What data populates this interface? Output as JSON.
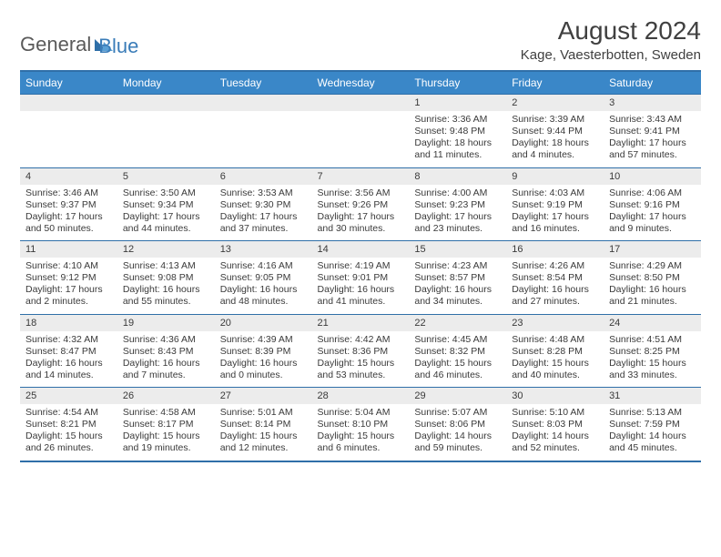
{
  "logo": {
    "general": "General",
    "blue": "Blue"
  },
  "title": "August 2024",
  "location": "Kage, Vaesterbotten, Sweden",
  "colors": {
    "header_bg": "#3a87c8",
    "border": "#2f6fa8",
    "daynum_bg": "#ececec",
    "text": "#3a3a3a",
    "logo_gray": "#5a5a5a",
    "logo_blue": "#3a7cb8"
  },
  "dayHeaders": [
    "Sunday",
    "Monday",
    "Tuesday",
    "Wednesday",
    "Thursday",
    "Friday",
    "Saturday"
  ],
  "weeks": [
    [
      {
        "num": "",
        "sunrise": "",
        "sunset": "",
        "daylight": ""
      },
      {
        "num": "",
        "sunrise": "",
        "sunset": "",
        "daylight": ""
      },
      {
        "num": "",
        "sunrise": "",
        "sunset": "",
        "daylight": ""
      },
      {
        "num": "",
        "sunrise": "",
        "sunset": "",
        "daylight": ""
      },
      {
        "num": "1",
        "sunrise": "Sunrise: 3:36 AM",
        "sunset": "Sunset: 9:48 PM",
        "daylight": "Daylight: 18 hours and 11 minutes."
      },
      {
        "num": "2",
        "sunrise": "Sunrise: 3:39 AM",
        "sunset": "Sunset: 9:44 PM",
        "daylight": "Daylight: 18 hours and 4 minutes."
      },
      {
        "num": "3",
        "sunrise": "Sunrise: 3:43 AM",
        "sunset": "Sunset: 9:41 PM",
        "daylight": "Daylight: 17 hours and 57 minutes."
      }
    ],
    [
      {
        "num": "4",
        "sunrise": "Sunrise: 3:46 AM",
        "sunset": "Sunset: 9:37 PM",
        "daylight": "Daylight: 17 hours and 50 minutes."
      },
      {
        "num": "5",
        "sunrise": "Sunrise: 3:50 AM",
        "sunset": "Sunset: 9:34 PM",
        "daylight": "Daylight: 17 hours and 44 minutes."
      },
      {
        "num": "6",
        "sunrise": "Sunrise: 3:53 AM",
        "sunset": "Sunset: 9:30 PM",
        "daylight": "Daylight: 17 hours and 37 minutes."
      },
      {
        "num": "7",
        "sunrise": "Sunrise: 3:56 AM",
        "sunset": "Sunset: 9:26 PM",
        "daylight": "Daylight: 17 hours and 30 minutes."
      },
      {
        "num": "8",
        "sunrise": "Sunrise: 4:00 AM",
        "sunset": "Sunset: 9:23 PM",
        "daylight": "Daylight: 17 hours and 23 minutes."
      },
      {
        "num": "9",
        "sunrise": "Sunrise: 4:03 AM",
        "sunset": "Sunset: 9:19 PM",
        "daylight": "Daylight: 17 hours and 16 minutes."
      },
      {
        "num": "10",
        "sunrise": "Sunrise: 4:06 AM",
        "sunset": "Sunset: 9:16 PM",
        "daylight": "Daylight: 17 hours and 9 minutes."
      }
    ],
    [
      {
        "num": "11",
        "sunrise": "Sunrise: 4:10 AM",
        "sunset": "Sunset: 9:12 PM",
        "daylight": "Daylight: 17 hours and 2 minutes."
      },
      {
        "num": "12",
        "sunrise": "Sunrise: 4:13 AM",
        "sunset": "Sunset: 9:08 PM",
        "daylight": "Daylight: 16 hours and 55 minutes."
      },
      {
        "num": "13",
        "sunrise": "Sunrise: 4:16 AM",
        "sunset": "Sunset: 9:05 PM",
        "daylight": "Daylight: 16 hours and 48 minutes."
      },
      {
        "num": "14",
        "sunrise": "Sunrise: 4:19 AM",
        "sunset": "Sunset: 9:01 PM",
        "daylight": "Daylight: 16 hours and 41 minutes."
      },
      {
        "num": "15",
        "sunrise": "Sunrise: 4:23 AM",
        "sunset": "Sunset: 8:57 PM",
        "daylight": "Daylight: 16 hours and 34 minutes."
      },
      {
        "num": "16",
        "sunrise": "Sunrise: 4:26 AM",
        "sunset": "Sunset: 8:54 PM",
        "daylight": "Daylight: 16 hours and 27 minutes."
      },
      {
        "num": "17",
        "sunrise": "Sunrise: 4:29 AM",
        "sunset": "Sunset: 8:50 PM",
        "daylight": "Daylight: 16 hours and 21 minutes."
      }
    ],
    [
      {
        "num": "18",
        "sunrise": "Sunrise: 4:32 AM",
        "sunset": "Sunset: 8:47 PM",
        "daylight": "Daylight: 16 hours and 14 minutes."
      },
      {
        "num": "19",
        "sunrise": "Sunrise: 4:36 AM",
        "sunset": "Sunset: 8:43 PM",
        "daylight": "Daylight: 16 hours and 7 minutes."
      },
      {
        "num": "20",
        "sunrise": "Sunrise: 4:39 AM",
        "sunset": "Sunset: 8:39 PM",
        "daylight": "Daylight: 16 hours and 0 minutes."
      },
      {
        "num": "21",
        "sunrise": "Sunrise: 4:42 AM",
        "sunset": "Sunset: 8:36 PM",
        "daylight": "Daylight: 15 hours and 53 minutes."
      },
      {
        "num": "22",
        "sunrise": "Sunrise: 4:45 AM",
        "sunset": "Sunset: 8:32 PM",
        "daylight": "Daylight: 15 hours and 46 minutes."
      },
      {
        "num": "23",
        "sunrise": "Sunrise: 4:48 AM",
        "sunset": "Sunset: 8:28 PM",
        "daylight": "Daylight: 15 hours and 40 minutes."
      },
      {
        "num": "24",
        "sunrise": "Sunrise: 4:51 AM",
        "sunset": "Sunset: 8:25 PM",
        "daylight": "Daylight: 15 hours and 33 minutes."
      }
    ],
    [
      {
        "num": "25",
        "sunrise": "Sunrise: 4:54 AM",
        "sunset": "Sunset: 8:21 PM",
        "daylight": "Daylight: 15 hours and 26 minutes."
      },
      {
        "num": "26",
        "sunrise": "Sunrise: 4:58 AM",
        "sunset": "Sunset: 8:17 PM",
        "daylight": "Daylight: 15 hours and 19 minutes."
      },
      {
        "num": "27",
        "sunrise": "Sunrise: 5:01 AM",
        "sunset": "Sunset: 8:14 PM",
        "daylight": "Daylight: 15 hours and 12 minutes."
      },
      {
        "num": "28",
        "sunrise": "Sunrise: 5:04 AM",
        "sunset": "Sunset: 8:10 PM",
        "daylight": "Daylight: 15 hours and 6 minutes."
      },
      {
        "num": "29",
        "sunrise": "Sunrise: 5:07 AM",
        "sunset": "Sunset: 8:06 PM",
        "daylight": "Daylight: 14 hours and 59 minutes."
      },
      {
        "num": "30",
        "sunrise": "Sunrise: 5:10 AM",
        "sunset": "Sunset: 8:03 PM",
        "daylight": "Daylight: 14 hours and 52 minutes."
      },
      {
        "num": "31",
        "sunrise": "Sunrise: 5:13 AM",
        "sunset": "Sunset: 7:59 PM",
        "daylight": "Daylight: 14 hours and 45 minutes."
      }
    ]
  ]
}
